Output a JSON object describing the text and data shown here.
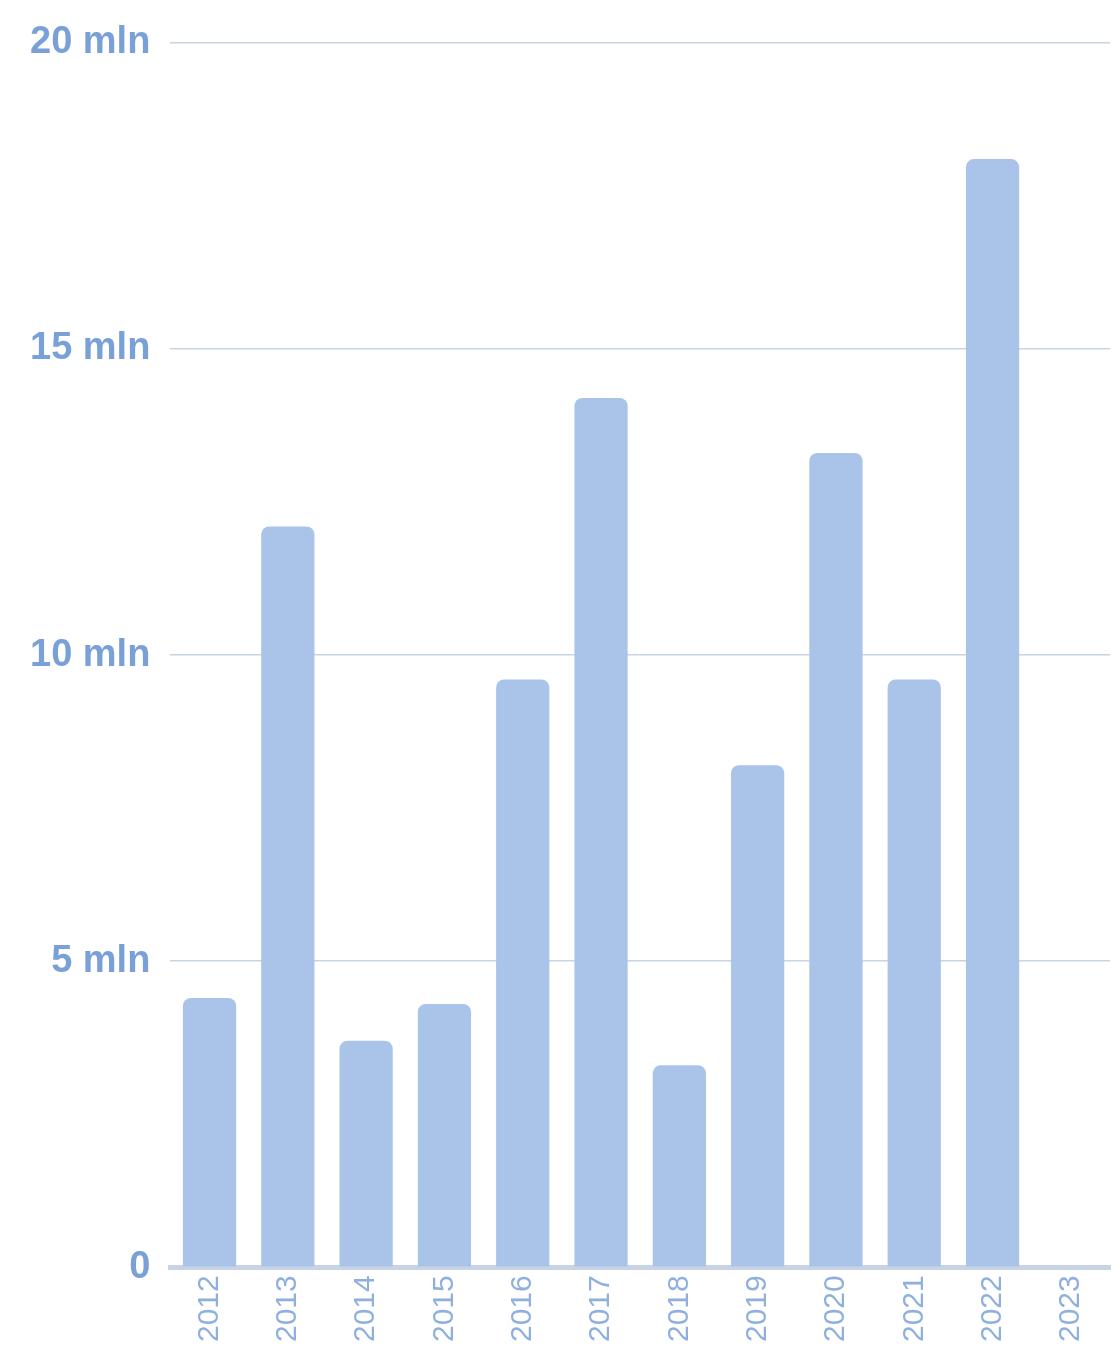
{
  "chart_data": {
    "type": "bar",
    "categories": [
      "2012",
      "2013",
      "2014",
      "2015",
      "2016",
      "2017",
      "2018",
      "2019",
      "2020",
      "2021",
      "2022",
      "2023"
    ],
    "values": [
      4.4,
      12.1,
      3.7,
      4.3,
      9.6,
      14.2,
      3.3,
      8.2,
      13.3,
      9.6,
      18.1,
      null
    ],
    "color": "#a9c4e8",
    "ylim": [
      0,
      20
    ],
    "yticks": [
      0,
      {
        "value": 5,
        "label": "5 mln"
      },
      {
        "value": 10,
        "label": "10 mln"
      },
      {
        "value": 15,
        "label": "15 mln"
      },
      {
        "value": 20,
        "label": "20 mln"
      }
    ],
    "grid": "y",
    "legend": false
  }
}
